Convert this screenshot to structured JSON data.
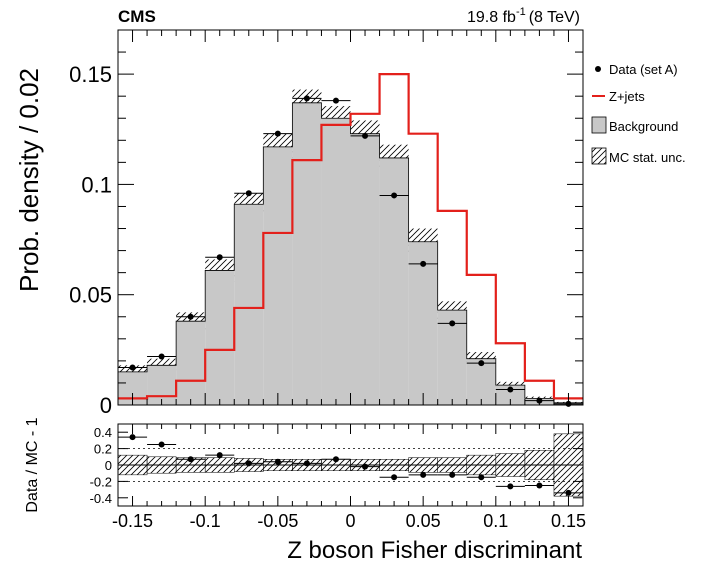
{
  "header": {
    "experiment": "CMS",
    "lumi_value": "19.8",
    "lumi_unit": "fb",
    "lumi_exp": "-1",
    "lumi_energy": "(8 TeV)"
  },
  "chart_data": [
    {
      "type": "histogram",
      "panel": "main",
      "ylabel": "Prob. density / 0.02",
      "xlim": [
        -0.16,
        0.16
      ],
      "ylim": [
        0,
        0.17
      ],
      "bin_edges": [
        -0.16,
        -0.14,
        -0.12,
        -0.1,
        -0.08,
        -0.06,
        -0.04,
        -0.02,
        0,
        0.02,
        0.04,
        0.06,
        0.08,
        0.1,
        0.12,
        0.14,
        0.16
      ],
      "yticks": [
        0,
        0.05,
        0.1,
        0.15
      ],
      "ytick_labels": [
        "0",
        "0.05",
        "0.1",
        "0.15"
      ],
      "legend_position": "right",
      "series": [
        {
          "name": "Data (set A)",
          "style": "points-with-xerr",
          "color": "#000000",
          "values": [
            0.017,
            0.022,
            0.04,
            0.067,
            0.096,
            0.123,
            0.139,
            0.138,
            0.122,
            0.095,
            0.064,
            0.037,
            0.019,
            0.007,
            0.002,
            0.0005
          ]
        },
        {
          "name": "Z+jets",
          "style": "step",
          "color": "#e3201b",
          "values": [
            0.003,
            0.004,
            0.011,
            0.025,
            0.044,
            0.078,
            0.111,
            0.127,
            0.132,
            0.15,
            0.123,
            0.088,
            0.059,
            0.028,
            0.011,
            0.003
          ]
        },
        {
          "name": "Background",
          "style": "filled",
          "color": "#c8c8c8",
          "values": [
            0.015,
            0.018,
            0.038,
            0.061,
            0.091,
            0.117,
            0.137,
            0.13,
            0.123,
            0.112,
            0.074,
            0.043,
            0.021,
            0.009,
            0.003,
            0.001
          ],
          "unc": [
            0.003,
            0.003,
            0.004,
            0.005,
            0.005,
            0.006,
            0.006,
            0.0055,
            0.006,
            0.006,
            0.006,
            0.004,
            0.003,
            0.0015,
            0.0008,
            0.0004
          ]
        },
        {
          "name": "MC stat. unc.",
          "style": "hatched",
          "color": "#000000"
        }
      ]
    },
    {
      "type": "points",
      "panel": "ratio",
      "ylabel": "Data / MC - 1",
      "xlabel": "Z boson Fisher discriminant",
      "xlim": [
        -0.16,
        0.16
      ],
      "ylim": [
        -0.5,
        0.5
      ],
      "reference_lines": [
        -0.2,
        0.2
      ],
      "xticks": [
        -0.15,
        -0.1,
        -0.05,
        0,
        0.05,
        0.1,
        0.15
      ],
      "xtick_labels": [
        "-0.15",
        "-0.1",
        "-0.05",
        "0",
        "0.05",
        "0.1",
        "0.15"
      ],
      "yticks": [
        -0.4,
        -0.2,
        0,
        0.2,
        0.4
      ],
      "ytick_labels": [
        "-0.4",
        "-0.2",
        "0",
        "0.2",
        "0.4"
      ],
      "values": [
        0.34,
        0.25,
        0.07,
        0.12,
        0.02,
        0.04,
        0.02,
        0.07,
        -0.02,
        -0.15,
        -0.12,
        -0.12,
        -0.15,
        -0.26,
        -0.25,
        -0.34
      ],
      "unc": [
        0.12,
        0.1,
        0.09,
        0.09,
        0.08,
        0.07,
        0.07,
        0.07,
        0.07,
        0.07,
        0.09,
        0.09,
        0.12,
        0.14,
        0.18,
        0.38
      ]
    }
  ]
}
